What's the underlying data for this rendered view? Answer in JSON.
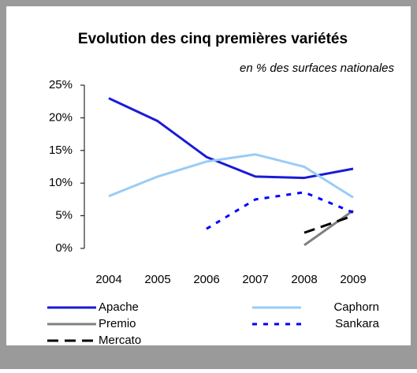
{
  "chart_data": {
    "type": "line",
    "title": "Evolution des cinq premières variétés",
    "subtitle": "en % des surfaces nationales",
    "categories": [
      "2004",
      "2005",
      "2006",
      "2007",
      "2008",
      "2009"
    ],
    "series": [
      {
        "name": "Apache",
        "color": "#1a1ad6",
        "style": "solid",
        "values": [
          23,
          19.5,
          14,
          11,
          10.8,
          12.2
        ]
      },
      {
        "name": "Caphorn",
        "color": "#99ccf5",
        "style": "solid",
        "values": [
          8,
          11,
          13.3,
          14.4,
          12.5,
          7.8
        ]
      },
      {
        "name": "Premio",
        "color": "#808080",
        "style": "solid",
        "values": [
          null,
          null,
          null,
          null,
          0.5,
          5.8
        ]
      },
      {
        "name": "Sankara",
        "color": "#0000ff",
        "style": "dotted",
        "values": [
          null,
          null,
          3,
          7.5,
          8.6,
          5.5
        ]
      },
      {
        "name": "Mercato",
        "color": "#000000",
        "style": "dashed",
        "values": [
          null,
          null,
          null,
          null,
          2.4,
          5
        ]
      }
    ],
    "ylim": [
      0,
      25
    ],
    "yticks": [
      {
        "value": 0,
        "label": "0%"
      },
      {
        "value": 5,
        "label": "5%"
      },
      {
        "value": 10,
        "label": "10%"
      },
      {
        "value": 15,
        "label": "15%"
      },
      {
        "value": 20,
        "label": "20%"
      },
      {
        "value": 25,
        "label": "25%"
      }
    ]
  }
}
